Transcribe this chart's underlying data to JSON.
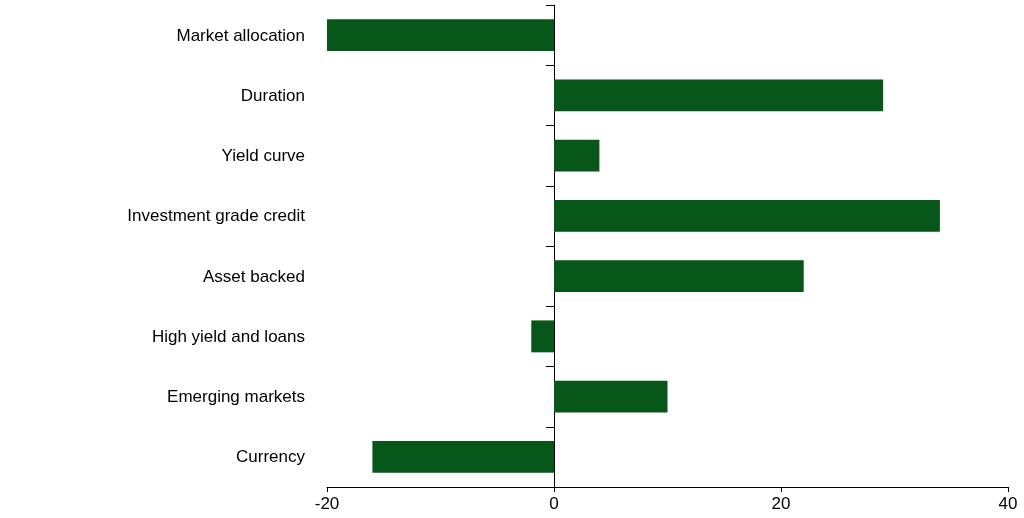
{
  "chart_data": {
    "type": "bar",
    "orientation": "horizontal",
    "categories": [
      "Market allocation",
      "Duration",
      "Yield curve",
      "Investment grade credit",
      "Asset backed",
      "High yield and loans",
      "Emerging markets",
      "Currency"
    ],
    "values": [
      -20,
      29,
      4,
      34,
      22,
      -2,
      10,
      -16
    ],
    "color": "#07561a",
    "xlim": [
      -20,
      40
    ],
    "xticks": [
      -20,
      0,
      20,
      40
    ]
  }
}
